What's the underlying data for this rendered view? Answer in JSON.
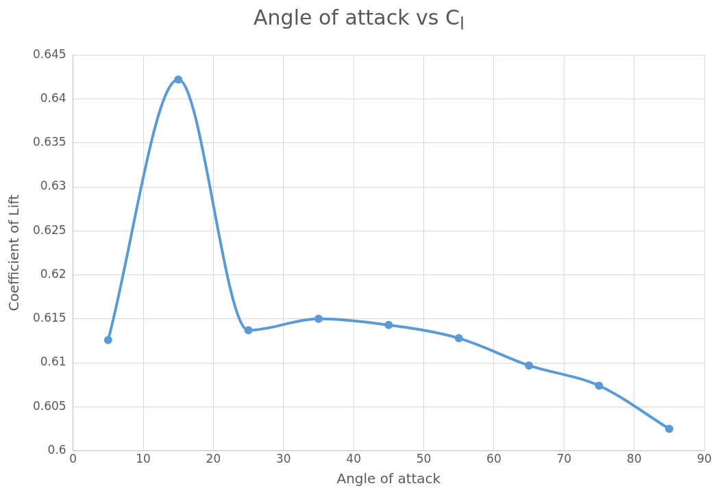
{
  "chart_data": {
    "type": "line",
    "title": "Angle of attack vs C$_{l}$",
    "xlabel": "Angle of attack",
    "ylabel": "Coefficient of Lift",
    "x": [
      5,
      15,
      25,
      35,
      45,
      55,
      65,
      75,
      85
    ],
    "series": [
      {
        "color": "#5b9bd5",
        "values": [
          0.6126,
          0.6422,
          0.6137,
          0.615,
          0.6143,
          0.6128,
          0.6097,
          0.6074,
          0.6025
        ]
      }
    ],
    "xlim": [
      0,
      90
    ],
    "xticks": [
      0,
      10,
      20,
      30,
      40,
      50,
      60,
      70,
      80,
      90
    ],
    "ylim": [
      0.6,
      0.645
    ],
    "yticks": [
      0.6,
      0.605,
      0.61,
      0.615,
      0.62,
      0.625,
      0.63,
      0.635,
      0.64,
      0.645
    ],
    "grid": true,
    "legend": false,
    "marker": "circle",
    "line_style": "solid"
  }
}
